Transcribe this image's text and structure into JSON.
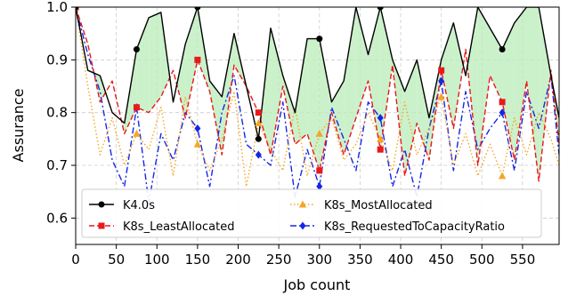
{
  "chart_data": {
    "type": "line",
    "title": "",
    "xlabel": "Job count",
    "ylabel": "Assurance",
    "xlim": [
      0,
      595
    ],
    "ylim": [
      0.55,
      1.0
    ],
    "x_ticks": [
      0,
      50,
      100,
      150,
      200,
      250,
      300,
      350,
      400,
      450,
      500,
      550
    ],
    "y_ticks": [
      0.6,
      0.7,
      0.8,
      0.9,
      1.0
    ],
    "x_tick_labels": [
      "0",
      "50",
      "100",
      "150",
      "200",
      "250",
      "300",
      "350",
      "400",
      "450",
      "500",
      "550"
    ],
    "y_tick_labels": [
      "0.6",
      "0.7",
      "0.8",
      "0.9",
      "1.0"
    ],
    "grid": true,
    "legend_position": "lower-center",
    "fill_between": {
      "upper": "K4.0s",
      "lower": "K8s_LeastAllocated",
      "color": "#b9ecb9"
    },
    "x": [
      0,
      15,
      30,
      45,
      60,
      75,
      90,
      105,
      120,
      135,
      150,
      165,
      180,
      195,
      210,
      225,
      240,
      255,
      270,
      285,
      300,
      315,
      330,
      345,
      360,
      375,
      390,
      405,
      420,
      435,
      450,
      465,
      480,
      495,
      510,
      525,
      540,
      555,
      570,
      585,
      595
    ],
    "series": [
      {
        "name": "K4.0s",
        "color": "#000000",
        "dash": "solid",
        "marker": "circle",
        "markers_at": [
          0,
          75,
          150,
          225,
          300,
          375,
          525
        ],
        "values": [
          1.0,
          0.88,
          0.87,
          0.8,
          0.78,
          0.92,
          0.98,
          0.99,
          0.82,
          0.93,
          1.0,
          0.86,
          0.83,
          0.95,
          0.85,
          0.75,
          0.96,
          0.87,
          0.8,
          0.94,
          0.94,
          0.82,
          0.86,
          1.0,
          0.91,
          1.0,
          0.9,
          0.84,
          0.9,
          0.79,
          0.9,
          0.97,
          0.87,
          1.0,
          0.96,
          0.92,
          0.97,
          1.0,
          1.0,
          0.87,
          0.79
        ]
      },
      {
        "name": "K8s_LeastAllocated",
        "color": "#e8191c",
        "dash": "dashed",
        "marker": "square",
        "markers_at": [
          0,
          75,
          150,
          225,
          300,
          375,
          450,
          525
        ],
        "values": [
          1.0,
          0.93,
          0.82,
          0.86,
          0.76,
          0.81,
          0.8,
          0.83,
          0.88,
          0.79,
          0.9,
          0.84,
          0.72,
          0.89,
          0.85,
          0.8,
          0.72,
          0.85,
          0.74,
          0.76,
          0.69,
          0.8,
          0.72,
          0.79,
          0.86,
          0.73,
          0.89,
          0.68,
          0.78,
          0.71,
          0.88,
          0.77,
          0.92,
          0.7,
          0.87,
          0.82,
          0.71,
          0.86,
          0.67,
          0.88,
          0.74
        ]
      },
      {
        "name": "K8s_MostAllocated",
        "color": "#f5a623",
        "dash": "dotted",
        "marker": "triangle",
        "markers_at": [
          0,
          75,
          150,
          225,
          300,
          375,
          450,
          525
        ],
        "values": [
          1.0,
          0.85,
          0.72,
          0.79,
          0.7,
          0.76,
          0.73,
          0.81,
          0.68,
          0.83,
          0.74,
          0.69,
          0.75,
          0.84,
          0.66,
          0.78,
          0.73,
          0.69,
          0.81,
          0.68,
          0.76,
          0.79,
          0.71,
          0.74,
          0.8,
          0.75,
          0.69,
          0.82,
          0.72,
          0.77,
          0.83,
          0.7,
          0.76,
          0.68,
          0.74,
          0.68,
          0.79,
          0.72,
          0.8,
          0.75,
          0.7
        ]
      },
      {
        "name": "K8s_RequestedToCapacityRatio",
        "color": "#1526e6",
        "dash": "dashdot",
        "marker": "diamond",
        "markers_at": [
          0,
          75,
          150,
          225,
          300,
          375,
          450,
          525
        ],
        "values": [
          1.0,
          0.91,
          0.84,
          0.71,
          0.66,
          0.81,
          0.63,
          0.76,
          0.71,
          0.8,
          0.77,
          0.66,
          0.8,
          0.87,
          0.74,
          0.72,
          0.7,
          0.82,
          0.64,
          0.73,
          0.66,
          0.81,
          0.75,
          0.69,
          0.82,
          0.79,
          0.66,
          0.73,
          0.64,
          0.77,
          0.86,
          0.69,
          0.84,
          0.73,
          0.77,
          0.8,
          0.69,
          0.84,
          0.77,
          0.87,
          0.72
        ]
      }
    ]
  }
}
